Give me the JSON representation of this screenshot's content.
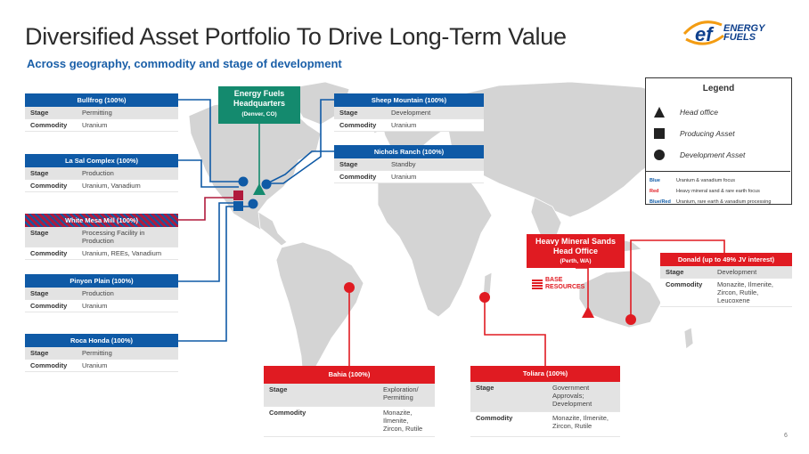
{
  "title": "Diversified Asset Portfolio To Drive Long-Term Value",
  "subtitle": "Across geography, commodity and stage of development",
  "logo": {
    "name": "ENERGY FUELS",
    "line1": "ENERGY",
    "line2": "FUELS"
  },
  "headquarters": {
    "line1": "Energy Fuels",
    "line2": "Headquarters",
    "location": "(Denver, CO)"
  },
  "hms_office": {
    "line1": "Heavy Mineral Sands",
    "line2": "Head Office",
    "location": "(Perth, WA)"
  },
  "base_resources": {
    "line1": "BASE",
    "line2": "RESOURCES"
  },
  "labels": {
    "stage": "Stage",
    "commodity": "Commodity"
  },
  "assets": {
    "bullfrog": {
      "title": "Bullfrog (100%)",
      "stage": "Permitting",
      "commodity": "Uranium"
    },
    "lasal": {
      "title": "La Sal Complex (100%)",
      "stage": "Production",
      "commodity": "Uranium, Vanadium"
    },
    "whitemesa": {
      "title": "White Mesa Mill (100%)",
      "stage": "Processing Facility in Production",
      "commodity": "Uranium, REEs, Vanadium"
    },
    "pinyon": {
      "title": "Pinyon Plain (100%)",
      "stage": "Production",
      "commodity": "Uranium"
    },
    "rocahonda": {
      "title": "Roca Honda (100%)",
      "stage": "Permitting",
      "commodity": "Uranium"
    },
    "sheep": {
      "title": "Sheep Mountain (100%)",
      "stage": "Development",
      "commodity": "Uranium"
    },
    "nichols": {
      "title": "Nichols Ranch (100%)",
      "stage": "Standby",
      "commodity": "Uranium"
    },
    "bahia": {
      "title": "Bahia (100%)",
      "stage": "Exploration/ Permitting",
      "commodity": "Monazite, Ilmenite, Zircon, Rutile"
    },
    "toliara": {
      "title": "Toliara (100%)",
      "stage": "Government Approvals; Development",
      "commodity": "Monazite, Ilmenite, Zircon, Rutile"
    },
    "donald": {
      "title": "Donald (up to 49% JV interest)",
      "stage": "Development",
      "commodity": "Monazite, Ilmenite, Zircon, Rutile, Leucoxene"
    }
  },
  "legend": {
    "title": "Legend",
    "items": [
      {
        "label": "Head office",
        "symbol": "triangle-icon"
      },
      {
        "label": "Producing Asset",
        "symbol": "square-icon"
      },
      {
        "label": "Development Asset",
        "symbol": "circle-icon"
      }
    ],
    "colors": [
      {
        "key": "Blue",
        "desc": "Uranium & vanadium focus",
        "color": "#0f5aa6"
      },
      {
        "key": "Red",
        "desc": "Heavy mineral sand & rare earth focus",
        "color": "#e01b22"
      },
      {
        "key": "Blue/Red",
        "desc": "Uranium, rare earth & vanadium processing",
        "color": "#0f5aa6"
      }
    ]
  },
  "page_number": "6",
  "colors": {
    "blue": "#0f5aa6",
    "red": "#e01b22",
    "green": "#148a6e",
    "land": "#d4d4d4",
    "maroon": "#b01a3c"
  }
}
